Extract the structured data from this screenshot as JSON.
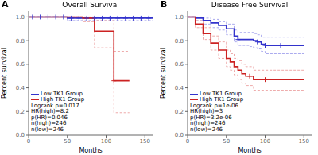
{
  "chart_data": [
    {
      "type": "line",
      "title": "Overall Survival",
      "panel_label": "A",
      "xlabel": "Months",
      "ylabel": "Percent survival",
      "xlim": [
        0,
        160
      ],
      "ylim": [
        0.0,
        1.05
      ],
      "xticks": [
        0,
        50,
        100,
        150
      ],
      "yticks": [
        {
          "value": 0.0,
          "label": "0.0"
        },
        0.2,
        0.4,
        0.6,
        0.8,
        {
          "value": 1.0,
          "label": "1.0"
        }
      ],
      "grid": false,
      "legend": "lower left",
      "annotations": [
        "Logrank p=0.017",
        "HR(high)=8.2",
        "p(HR)=0.046",
        "n(high)=246",
        "n(low)=246"
      ],
      "series": [
        {
          "type": "step",
          "color": "#aaaaee",
          "line_style": "dashed",
          "x": [
            0,
            5,
            10,
            20,
            30,
            40,
            50,
            60,
            70,
            80,
            90,
            100,
            110,
            120,
            130,
            140,
            150,
            160
          ],
          "values": [
            1.0,
            1.0,
            1.0,
            1.0,
            1.0,
            1.0,
            1.0,
            1.0,
            1.0,
            1.0,
            1.0,
            1.0,
            1.0,
            1.0,
            1.0,
            1.0,
            1.0,
            1.0
          ]
        },
        {
          "type": "step",
          "color": "#aaaaee",
          "line_style": "dashed",
          "x": [
            0,
            5,
            10,
            20,
            30,
            40,
            50,
            60,
            70,
            80,
            90,
            100,
            110,
            120,
            130,
            140,
            150,
            160
          ],
          "values": [
            1.0,
            1.0,
            1.0,
            1.0,
            1.0,
            1.0,
            0.97,
            0.97,
            0.97,
            0.97,
            0.97,
            0.97,
            0.97,
            0.97,
            0.97,
            0.97,
            0.97,
            0.97
          ]
        },
        {
          "type": "step",
          "color": "#eeaaaa",
          "line_style": "dashed",
          "x": [
            0,
            10,
            20,
            30,
            40,
            50,
            60,
            70,
            80,
            85,
            90,
            95,
            100,
            107,
            110,
            120,
            125,
            130
          ],
          "values": [
            1.0,
            1.0,
            1.0,
            1.0,
            1.0,
            1.0,
            1.0,
            1.0,
            1.0,
            0.97,
            0.97,
            0.97,
            0.97,
            0.97,
            0.71,
            0.71,
            0.71,
            0.71
          ]
        },
        {
          "type": "step",
          "color": "#eeaaaa",
          "line_style": "dashed",
          "x": [
            0,
            10,
            20,
            30,
            40,
            50,
            60,
            70,
            80,
            85,
            90,
            95,
            100,
            107,
            110,
            120,
            125,
            130
          ],
          "values": [
            1.0,
            1.0,
            1.0,
            1.0,
            1.0,
            1.0,
            1.0,
            0.96,
            0.96,
            0.74,
            0.74,
            0.74,
            0.74,
            0.74,
            0.19,
            0.19,
            0.19,
            0.19
          ]
        },
        {
          "type": "step",
          "name": "Low TK1 Group",
          "color": "#3333cc",
          "line_style": "solid",
          "x": [
            0,
            5,
            10,
            20,
            30,
            40,
            50,
            60,
            70,
            80,
            90,
            100,
            110,
            120,
            130,
            140,
            150,
            160
          ],
          "values": [
            1.0,
            1.0,
            1.0,
            1.0,
            1.0,
            1.0,
            0.99,
            0.99,
            0.99,
            0.99,
            0.99,
            0.99,
            0.99,
            0.99,
            0.99,
            0.99,
            0.99,
            0.99
          ]
        },
        {
          "type": "step",
          "name": "High TK1 Group",
          "color": "#cc2222",
          "line_style": "solid",
          "x": [
            0,
            10,
            20,
            30,
            40,
            50,
            60,
            70,
            80,
            85,
            90,
            95,
            100,
            107,
            110,
            120,
            125,
            130
          ],
          "values": [
            1.0,
            1.0,
            1.0,
            1.0,
            1.0,
            1.0,
            1.0,
            0.99,
            0.99,
            0.88,
            0.88,
            0.88,
            0.88,
            0.88,
            0.46,
            0.46,
            0.46,
            0.46
          ]
        },
        {
          "type": "scatter",
          "marker": "+",
          "color": "#3333cc",
          "x": [
            5,
            15,
            25,
            35,
            45,
            55,
            65,
            75,
            85,
            95,
            105,
            115,
            125,
            135,
            145,
            155
          ],
          "values": [
            1.0,
            1.0,
            1.0,
            1.0,
            1.0,
            0.99,
            0.99,
            0.99,
            0.99,
            0.99,
            0.99,
            0.99,
            0.99,
            0.99,
            0.99,
            0.99
          ]
        },
        {
          "type": "scatter",
          "marker": "+",
          "color": "#cc2222",
          "x": [
            110
          ],
          "values": [
            0.46
          ]
        }
      ]
    },
    {
      "type": "line",
      "title": "Disease Free Survival",
      "panel_label": "B",
      "xlabel": "Months",
      "ylabel": "Percent survival",
      "xlim": [
        0,
        160
      ],
      "ylim": [
        0.0,
        1.05
      ],
      "xticks": [
        0,
        50,
        100,
        150
      ],
      "yticks": [
        {
          "value": 0.0,
          "label": "0.0"
        },
        0.2,
        0.4,
        0.6,
        0.8,
        {
          "value": 1.0,
          "label": "1.0"
        }
      ],
      "grid": false,
      "legend": "lower left",
      "annotations": [
        "Logrank p=1e-06",
        "HR(high)=3",
        "p(HR)=3.2e-06",
        "n(high)=246",
        "n(low)=246"
      ],
      "series": [
        {
          "type": "step",
          "color": "#aaaaee",
          "line_style": "dashed",
          "x": [
            0,
            10,
            20,
            30,
            40,
            50,
            60,
            65,
            70,
            80,
            85,
            90,
            95,
            100,
            110,
            120,
            130,
            140,
            150
          ],
          "values": [
            1.0,
            1.0,
            0.99,
            0.98,
            0.96,
            0.94,
            0.89,
            0.87,
            0.87,
            0.87,
            0.86,
            0.85,
            0.83,
            0.83,
            0.83,
            0.83,
            0.83,
            0.83,
            0.83
          ]
        },
        {
          "type": "step",
          "color": "#aaaaee",
          "line_style": "dashed",
          "x": [
            0,
            10,
            20,
            30,
            40,
            50,
            60,
            65,
            70,
            80,
            85,
            90,
            95,
            100,
            110,
            120,
            130,
            140,
            150
          ],
          "values": [
            1.0,
            0.97,
            0.94,
            0.91,
            0.89,
            0.85,
            0.79,
            0.76,
            0.76,
            0.75,
            0.74,
            0.73,
            0.71,
            0.69,
            0.69,
            0.69,
            0.69,
            0.69,
            0.69
          ]
        },
        {
          "type": "step",
          "color": "#eeaaaa",
          "line_style": "dashed",
          "x": [
            0,
            10,
            20,
            30,
            40,
            50,
            55,
            60,
            65,
            70,
            75,
            80,
            85,
            90,
            100,
            110,
            120,
            130,
            140,
            150
          ],
          "values": [
            1.0,
            0.97,
            0.91,
            0.84,
            0.79,
            0.72,
            0.69,
            0.65,
            0.63,
            0.6,
            0.58,
            0.58,
            0.55,
            0.55,
            0.55,
            0.55,
            0.55,
            0.55,
            0.55,
            0.55
          ]
        },
        {
          "type": "step",
          "color": "#eeaaaa",
          "line_style": "dashed",
          "x": [
            0,
            10,
            20,
            30,
            40,
            50,
            55,
            60,
            65,
            70,
            75,
            80,
            85,
            90,
            100,
            110,
            120,
            130,
            140,
            150
          ],
          "values": [
            1.0,
            0.91,
            0.81,
            0.72,
            0.65,
            0.58,
            0.55,
            0.51,
            0.47,
            0.44,
            0.42,
            0.42,
            0.38,
            0.38,
            0.38,
            0.38,
            0.38,
            0.38,
            0.38,
            0.38
          ]
        },
        {
          "type": "step",
          "name": "Low TK1 Group",
          "color": "#3333cc",
          "line_style": "solid",
          "x": [
            0,
            10,
            20,
            30,
            40,
            50,
            60,
            65,
            70,
            80,
            85,
            90,
            95,
            100,
            110,
            120,
            130,
            140,
            150
          ],
          "values": [
            1.0,
            0.99,
            0.97,
            0.95,
            0.93,
            0.9,
            0.84,
            0.81,
            0.81,
            0.81,
            0.8,
            0.79,
            0.77,
            0.76,
            0.76,
            0.76,
            0.76,
            0.76,
            0.76
          ]
        },
        {
          "type": "step",
          "name": "High TK1 Group",
          "color": "#cc2222",
          "line_style": "solid",
          "x": [
            0,
            10,
            20,
            30,
            40,
            50,
            55,
            60,
            65,
            70,
            75,
            80,
            85,
            90,
            100,
            110,
            120,
            130,
            140,
            150
          ],
          "values": [
            1.0,
            0.94,
            0.86,
            0.78,
            0.72,
            0.65,
            0.62,
            0.58,
            0.55,
            0.52,
            0.5,
            0.5,
            0.47,
            0.47,
            0.47,
            0.47,
            0.47,
            0.47,
            0.47,
            0.47
          ]
        },
        {
          "type": "scatter",
          "marker": "+",
          "color": "#3333cc",
          "x": [
            65,
            90,
            100,
            120
          ],
          "values": [
            0.81,
            0.79,
            0.76,
            0.76
          ]
        },
        {
          "type": "scatter",
          "marker": "+",
          "color": "#cc2222",
          "x": [
            80,
            100
          ],
          "values": [
            0.5,
            0.47
          ]
        }
      ]
    }
  ]
}
